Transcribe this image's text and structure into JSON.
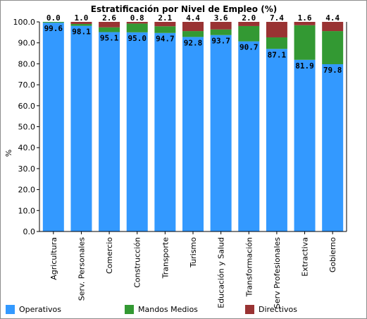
{
  "chart_data": {
    "type": "bar",
    "stacked": true,
    "title": "Estratificación por Nivel de Empleo (%)",
    "xlabel": "",
    "ylabel": "%",
    "ylim": [
      0,
      100
    ],
    "yticks": [
      "0.0",
      "10.0",
      "20.0",
      "30.0",
      "40.0",
      "50.0",
      "60.0",
      "70.0",
      "80.0",
      "90.0",
      "100.0"
    ],
    "grid": false,
    "legend_position": "bottom",
    "categories": [
      "Agricultura",
      "Serv. Personales",
      "Comercio",
      "Construcción",
      "Transporte",
      "Turismo",
      "Educación y Salud",
      "Transformación",
      "Serv Profesionales",
      "Extractiva",
      "Gobierno"
    ],
    "series": [
      {
        "name": "Operativos",
        "color": "#3399ff",
        "values": [
          99.6,
          98.1,
          95.1,
          95.0,
          94.7,
          92.8,
          93.7,
          90.7,
          87.1,
          81.9,
          79.8
        ],
        "labels": [
          "99.6",
          "98.1",
          "95.1",
          "95.0",
          "94.7",
          "92.8",
          "93.7",
          "90.7",
          "87.1",
          "81.9",
          "79.8"
        ]
      },
      {
        "name": "Mandos Medios",
        "color": "#339933",
        "values": [
          0.4,
          0.9,
          2.3,
          4.2,
          3.2,
          2.8,
          2.7,
          7.3,
          5.5,
          16.5,
          15.8
        ]
      },
      {
        "name": "Directivos",
        "color": "#993333",
        "values": [
          0.0,
          1.0,
          2.6,
          0.8,
          2.1,
          4.4,
          3.6,
          2.0,
          7.4,
          1.6,
          4.4
        ],
        "labels": [
          "0.0",
          "1.0",
          "2.6",
          "0.8",
          "2.1",
          "4.4",
          "3.6",
          "2.0",
          "7.4",
          "1.6",
          "4.4"
        ]
      }
    ]
  }
}
